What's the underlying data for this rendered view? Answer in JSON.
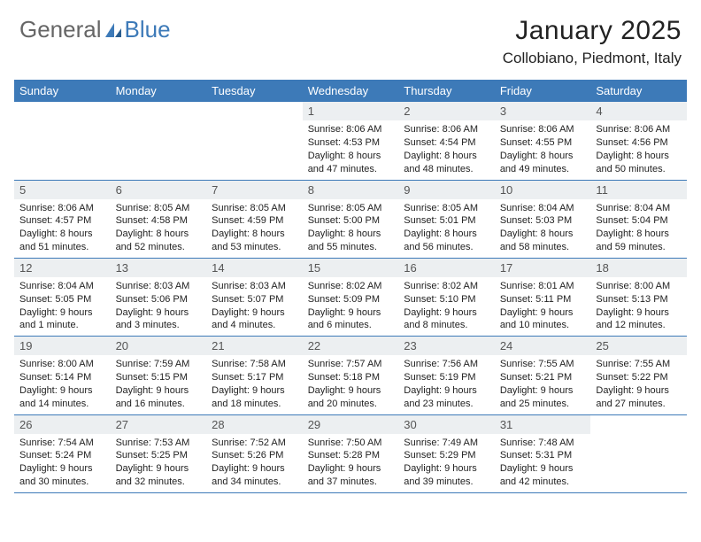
{
  "logo": {
    "text_a": "General",
    "text_b": "Blue",
    "accent_color": "#3d7ab8"
  },
  "title": "January 2025",
  "location": "Collobiano, Piedmont, Italy",
  "header_bg": "#3d7ab8",
  "header_text_color": "#ffffff",
  "daynum_bg": "#eceff1",
  "row_border_color": "#3d7ab8",
  "text_color": "#222222",
  "font_family": "Arial",
  "weekdays": [
    "Sunday",
    "Monday",
    "Tuesday",
    "Wednesday",
    "Thursday",
    "Friday",
    "Saturday"
  ],
  "weeks": [
    [
      {
        "n": "",
        "sr": "",
        "ss": "",
        "dl": ""
      },
      {
        "n": "",
        "sr": "",
        "ss": "",
        "dl": ""
      },
      {
        "n": "",
        "sr": "",
        "ss": "",
        "dl": ""
      },
      {
        "n": "1",
        "sr": "Sunrise: 8:06 AM",
        "ss": "Sunset: 4:53 PM",
        "dl": "Daylight: 8 hours and 47 minutes."
      },
      {
        "n": "2",
        "sr": "Sunrise: 8:06 AM",
        "ss": "Sunset: 4:54 PM",
        "dl": "Daylight: 8 hours and 48 minutes."
      },
      {
        "n": "3",
        "sr": "Sunrise: 8:06 AM",
        "ss": "Sunset: 4:55 PM",
        "dl": "Daylight: 8 hours and 49 minutes."
      },
      {
        "n": "4",
        "sr": "Sunrise: 8:06 AM",
        "ss": "Sunset: 4:56 PM",
        "dl": "Daylight: 8 hours and 50 minutes."
      }
    ],
    [
      {
        "n": "5",
        "sr": "Sunrise: 8:06 AM",
        "ss": "Sunset: 4:57 PM",
        "dl": "Daylight: 8 hours and 51 minutes."
      },
      {
        "n": "6",
        "sr": "Sunrise: 8:05 AM",
        "ss": "Sunset: 4:58 PM",
        "dl": "Daylight: 8 hours and 52 minutes."
      },
      {
        "n": "7",
        "sr": "Sunrise: 8:05 AM",
        "ss": "Sunset: 4:59 PM",
        "dl": "Daylight: 8 hours and 53 minutes."
      },
      {
        "n": "8",
        "sr": "Sunrise: 8:05 AM",
        "ss": "Sunset: 5:00 PM",
        "dl": "Daylight: 8 hours and 55 minutes."
      },
      {
        "n": "9",
        "sr": "Sunrise: 8:05 AM",
        "ss": "Sunset: 5:01 PM",
        "dl": "Daylight: 8 hours and 56 minutes."
      },
      {
        "n": "10",
        "sr": "Sunrise: 8:04 AM",
        "ss": "Sunset: 5:03 PM",
        "dl": "Daylight: 8 hours and 58 minutes."
      },
      {
        "n": "11",
        "sr": "Sunrise: 8:04 AM",
        "ss": "Sunset: 5:04 PM",
        "dl": "Daylight: 8 hours and 59 minutes."
      }
    ],
    [
      {
        "n": "12",
        "sr": "Sunrise: 8:04 AM",
        "ss": "Sunset: 5:05 PM",
        "dl": "Daylight: 9 hours and 1 minute."
      },
      {
        "n": "13",
        "sr": "Sunrise: 8:03 AM",
        "ss": "Sunset: 5:06 PM",
        "dl": "Daylight: 9 hours and 3 minutes."
      },
      {
        "n": "14",
        "sr": "Sunrise: 8:03 AM",
        "ss": "Sunset: 5:07 PM",
        "dl": "Daylight: 9 hours and 4 minutes."
      },
      {
        "n": "15",
        "sr": "Sunrise: 8:02 AM",
        "ss": "Sunset: 5:09 PM",
        "dl": "Daylight: 9 hours and 6 minutes."
      },
      {
        "n": "16",
        "sr": "Sunrise: 8:02 AM",
        "ss": "Sunset: 5:10 PM",
        "dl": "Daylight: 9 hours and 8 minutes."
      },
      {
        "n": "17",
        "sr": "Sunrise: 8:01 AM",
        "ss": "Sunset: 5:11 PM",
        "dl": "Daylight: 9 hours and 10 minutes."
      },
      {
        "n": "18",
        "sr": "Sunrise: 8:00 AM",
        "ss": "Sunset: 5:13 PM",
        "dl": "Daylight: 9 hours and 12 minutes."
      }
    ],
    [
      {
        "n": "19",
        "sr": "Sunrise: 8:00 AM",
        "ss": "Sunset: 5:14 PM",
        "dl": "Daylight: 9 hours and 14 minutes."
      },
      {
        "n": "20",
        "sr": "Sunrise: 7:59 AM",
        "ss": "Sunset: 5:15 PM",
        "dl": "Daylight: 9 hours and 16 minutes."
      },
      {
        "n": "21",
        "sr": "Sunrise: 7:58 AM",
        "ss": "Sunset: 5:17 PM",
        "dl": "Daylight: 9 hours and 18 minutes."
      },
      {
        "n": "22",
        "sr": "Sunrise: 7:57 AM",
        "ss": "Sunset: 5:18 PM",
        "dl": "Daylight: 9 hours and 20 minutes."
      },
      {
        "n": "23",
        "sr": "Sunrise: 7:56 AM",
        "ss": "Sunset: 5:19 PM",
        "dl": "Daylight: 9 hours and 23 minutes."
      },
      {
        "n": "24",
        "sr": "Sunrise: 7:55 AM",
        "ss": "Sunset: 5:21 PM",
        "dl": "Daylight: 9 hours and 25 minutes."
      },
      {
        "n": "25",
        "sr": "Sunrise: 7:55 AM",
        "ss": "Sunset: 5:22 PM",
        "dl": "Daylight: 9 hours and 27 minutes."
      }
    ],
    [
      {
        "n": "26",
        "sr": "Sunrise: 7:54 AM",
        "ss": "Sunset: 5:24 PM",
        "dl": "Daylight: 9 hours and 30 minutes."
      },
      {
        "n": "27",
        "sr": "Sunrise: 7:53 AM",
        "ss": "Sunset: 5:25 PM",
        "dl": "Daylight: 9 hours and 32 minutes."
      },
      {
        "n": "28",
        "sr": "Sunrise: 7:52 AM",
        "ss": "Sunset: 5:26 PM",
        "dl": "Daylight: 9 hours and 34 minutes."
      },
      {
        "n": "29",
        "sr": "Sunrise: 7:50 AM",
        "ss": "Sunset: 5:28 PM",
        "dl": "Daylight: 9 hours and 37 minutes."
      },
      {
        "n": "30",
        "sr": "Sunrise: 7:49 AM",
        "ss": "Sunset: 5:29 PM",
        "dl": "Daylight: 9 hours and 39 minutes."
      },
      {
        "n": "31",
        "sr": "Sunrise: 7:48 AM",
        "ss": "Sunset: 5:31 PM",
        "dl": "Daylight: 9 hours and 42 minutes."
      },
      {
        "n": "",
        "sr": "",
        "ss": "",
        "dl": ""
      }
    ]
  ]
}
